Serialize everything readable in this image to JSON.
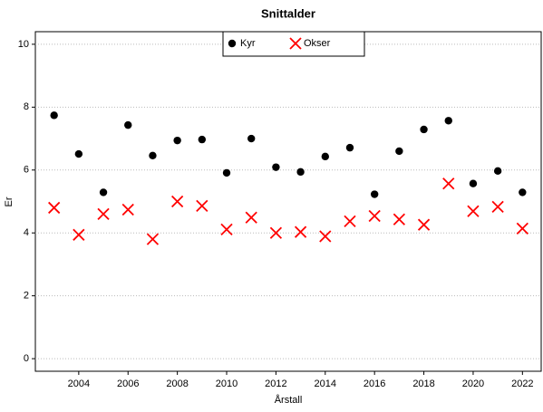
{
  "chart_data": {
    "type": "scatter",
    "title": "Snittalder",
    "x_label": "Årstall",
    "y_label": "Er",
    "x": [
      2003,
      2004,
      2005,
      2006,
      2007,
      2008,
      2009,
      2010,
      2011,
      2012,
      2013,
      2014,
      2015,
      2016,
      2017,
      2018,
      2019,
      2020,
      2021,
      2022
    ],
    "series": [
      {
        "name": "Kyr",
        "color": "#000000",
        "marker": "circle",
        "values": [
          7.74,
          6.51,
          5.29,
          7.43,
          6.46,
          6.94,
          6.97,
          5.91,
          7.0,
          6.09,
          5.94,
          6.43,
          6.71,
          5.23,
          6.6,
          7.29,
          7.57,
          5.57,
          5.97,
          5.29
        ]
      },
      {
        "name": "Okser",
        "color": "#ff0000",
        "marker": "x",
        "values": [
          4.8,
          3.94,
          4.6,
          4.74,
          3.8,
          5.0,
          4.86,
          4.11,
          4.49,
          4.0,
          4.03,
          3.89,
          4.37,
          4.54,
          4.43,
          4.26,
          5.57,
          4.69,
          4.83,
          4.14
        ]
      }
    ],
    "xlim": [
      2002.24,
      2022.76
    ],
    "ylim": [
      -0.4,
      10.4
    ],
    "xticks": [
      2004,
      2006,
      2008,
      2010,
      2012,
      2014,
      2016,
      2018,
      2020,
      2022
    ],
    "yticks": [
      0,
      2,
      4,
      6,
      8,
      10
    ],
    "grid": "y",
    "legend": "top"
  }
}
